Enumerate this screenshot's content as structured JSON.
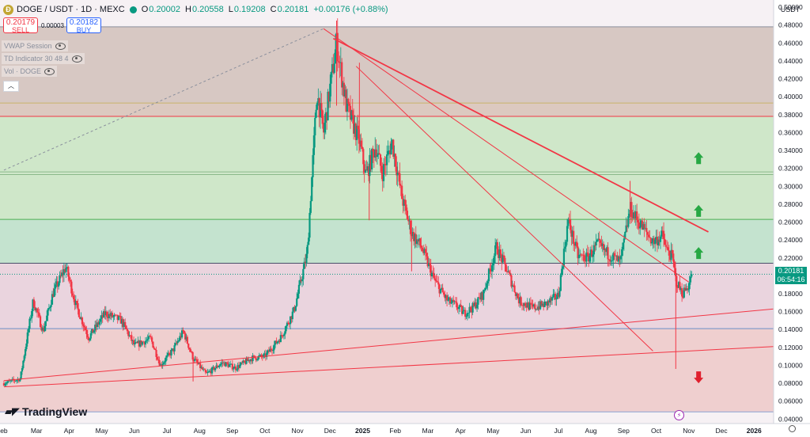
{
  "header": {
    "symbol": "DOGE / USDT · 1D · MEXC",
    "coin_letter": "Ð",
    "open_label": "O",
    "open": "0.20002",
    "high_label": "H",
    "high": "0.20558",
    "low_label": "L",
    "low": "0.19208",
    "close_label": "C",
    "close": "0.20181",
    "change": "+0.00176 (+0.88%)"
  },
  "trade": {
    "sell_price": "0.20179",
    "sell_label": "SELL",
    "spread": "0.00003",
    "buy_price": "0.20182",
    "buy_label": "BUY"
  },
  "indicators": [
    "VWAP Session",
    "TD Indicator 30 48 4",
    "Vol · DOGE"
  ],
  "currency": "USDT",
  "price_label": {
    "price": "0.20181",
    "countdown": "06:54:16"
  },
  "branding": "TradingView",
  "colors": {
    "up": "#089981",
    "down": "#f23645",
    "trend": "#f23645"
  },
  "chart_data": {
    "type": "candlestick",
    "y_ticks": [
      "0.50000",
      "0.48000",
      "0.46000",
      "0.44000",
      "0.42000",
      "0.40000",
      "0.38000",
      "0.36000",
      "0.34000",
      "0.32000",
      "0.30000",
      "0.28000",
      "0.26000",
      "0.24000",
      "0.22000",
      "0.20000",
      "0.18000",
      "0.16000",
      "0.14000",
      "0.12000",
      "0.10000",
      "0.08000",
      "0.06000",
      "0.04000"
    ],
    "ylim": [
      0.035,
      0.508
    ],
    "x_ticks": [
      "eb",
      "Mar",
      "Apr",
      "May",
      "Jun",
      "Jul",
      "Aug",
      "Sep",
      "Oct",
      "Nov",
      "Dec",
      "2025",
      "Feb",
      "Mar",
      "Apr",
      "May",
      "Jun",
      "Jul",
      "Aug",
      "Sep",
      "Oct",
      "Nov",
      "Dec",
      "2026"
    ],
    "x_tick_bold": [
      false,
      false,
      false,
      false,
      false,
      false,
      false,
      false,
      false,
      false,
      false,
      true,
      false,
      false,
      false,
      false,
      false,
      false,
      false,
      false,
      false,
      false,
      false,
      true
    ],
    "x_tick_month_index": [
      1,
      2,
      3,
      4,
      5,
      6,
      7,
      8,
      9,
      10,
      11,
      12,
      13,
      14,
      15,
      16,
      17,
      18,
      19,
      20,
      21,
      22,
      23,
      24
    ],
    "x_month_start": 1,
    "x_month_end": 24.6,
    "zones": [
      {
        "from": 0.393,
        "to": 0.478,
        "color": "#d7c8c3"
      },
      {
        "from": 0.378,
        "to": 0.393,
        "color": "#dcc9c0"
      },
      {
        "from": 0.263,
        "to": 0.378,
        "color": "#cfe7c9"
      },
      {
        "from": 0.214,
        "to": 0.263,
        "color": "#c4e3cf"
      },
      {
        "from": 0.141,
        "to": 0.214,
        "color": "#ead4de"
      },
      {
        "from": 0.048,
        "to": 0.141,
        "color": "#efcfcf"
      }
    ],
    "h_lines": [
      {
        "y": 0.478,
        "color": "#8a8f9c"
      },
      {
        "y": 0.393,
        "color": "#c9b36a"
      },
      {
        "y": 0.378,
        "color": "#f23645"
      },
      {
        "y": 0.316,
        "color": "#8bb88a"
      },
      {
        "y": 0.313,
        "color": "#8bb88a"
      },
      {
        "y": 0.263,
        "color": "#4caf50"
      },
      {
        "y": 0.214,
        "color": "#4a4f6a"
      },
      {
        "y": 0.141,
        "color": "#6b8fc7"
      },
      {
        "y": 0.048,
        "color": "#8aa0d0"
      }
    ],
    "trend_lines": [
      {
        "x1": 11.1,
        "y1": 0.465,
        "x2": 22.6,
        "y2": 0.249,
        "width": 1.8
      },
      {
        "x1": 10.8,
        "y1": 0.476,
        "x2": 22.0,
        "y2": 0.193,
        "width": 1
      },
      {
        "x1": 11.8,
        "y1": 0.434,
        "x2": 20.9,
        "y2": 0.116,
        "width": 1
      },
      {
        "x1": 1.0,
        "y1": 0.083,
        "x2": 24.6,
        "y2": 0.163,
        "width": 1
      },
      {
        "x1": 1.0,
        "y1": 0.076,
        "x2": 24.6,
        "y2": 0.121,
        "width": 1
      }
    ],
    "dashed_line": {
      "x1": 1.0,
      "y1": 0.318,
      "x2": 10.8,
      "y2": 0.476
    },
    "arrows": [
      {
        "x": 22.3,
        "y": 0.331,
        "dir": "up"
      },
      {
        "x": 22.3,
        "y": 0.272,
        "dir": "up"
      },
      {
        "x": 22.3,
        "y": 0.225,
        "dir": "up"
      },
      {
        "x": 22.3,
        "y": 0.087,
        "dir": "down"
      }
    ],
    "path": [
      [
        1.0,
        0.08
      ],
      [
        1.5,
        0.085
      ],
      [
        1.9,
        0.172
      ],
      [
        2.2,
        0.138
      ],
      [
        2.5,
        0.18
      ],
      [
        2.9,
        0.21
      ],
      [
        3.2,
        0.168
      ],
      [
        3.6,
        0.131
      ],
      [
        4.1,
        0.158
      ],
      [
        4.6,
        0.15
      ],
      [
        5.0,
        0.122
      ],
      [
        5.5,
        0.13
      ],
      [
        5.8,
        0.1
      ],
      [
        6.2,
        0.118
      ],
      [
        6.5,
        0.138
      ],
      [
        6.8,
        0.108
      ],
      [
        7.2,
        0.09
      ],
      [
        7.7,
        0.103
      ],
      [
        8.1,
        0.097
      ],
      [
        8.6,
        0.108
      ],
      [
        9.0,
        0.11
      ],
      [
        9.5,
        0.132
      ],
      [
        9.9,
        0.162
      ],
      [
        10.3,
        0.225
      ],
      [
        10.6,
        0.405
      ],
      [
        10.8,
        0.36
      ],
      [
        11.2,
        0.46
      ],
      [
        11.5,
        0.39
      ],
      [
        11.9,
        0.35
      ],
      [
        12.1,
        0.312
      ],
      [
        12.4,
        0.345
      ],
      [
        12.6,
        0.314
      ],
      [
        12.9,
        0.35
      ],
      [
        13.2,
        0.288
      ],
      [
        13.5,
        0.248
      ],
      [
        13.8,
        0.232
      ],
      [
        14.2,
        0.195
      ],
      [
        14.6,
        0.172
      ],
      [
        14.9,
        0.166
      ],
      [
        15.1,
        0.158
      ],
      [
        15.4,
        0.165
      ],
      [
        15.7,
        0.18
      ],
      [
        16.1,
        0.232
      ],
      [
        16.4,
        0.208
      ],
      [
        16.8,
        0.172
      ],
      [
        17.2,
        0.164
      ],
      [
        17.6,
        0.168
      ],
      [
        18.0,
        0.178
      ],
      [
        18.3,
        0.262
      ],
      [
        18.6,
        0.222
      ],
      [
        18.9,
        0.22
      ],
      [
        19.2,
        0.235
      ],
      [
        19.5,
        0.225
      ],
      [
        19.9,
        0.215
      ],
      [
        20.2,
        0.275
      ],
      [
        20.5,
        0.258
      ],
      [
        20.9,
        0.238
      ],
      [
        21.2,
        0.245
      ],
      [
        21.3,
        0.23
      ],
      [
        21.5,
        0.22
      ],
      [
        21.6,
        0.195
      ],
      [
        21.8,
        0.18
      ],
      [
        22.0,
        0.19
      ],
      [
        22.1,
        0.2018
      ]
    ],
    "spikes": [
      {
        "x": 11.2,
        "high": 0.485,
        "low": 0.39
      },
      {
        "x": 11.9,
        "high": 0.438,
        "low": 0.34
      },
      {
        "x": 13.5,
        "high": 0.262,
        "low": 0.205
      },
      {
        "x": 12.2,
        "high": 0.312,
        "low": 0.262
      },
      {
        "x": 21.6,
        "high": 0.205,
        "low": 0.096
      },
      {
        "x": 20.2,
        "high": 0.306,
        "low": 0.258
      },
      {
        "x": 6.8,
        "high": 0.108,
        "low": 0.082
      }
    ]
  }
}
